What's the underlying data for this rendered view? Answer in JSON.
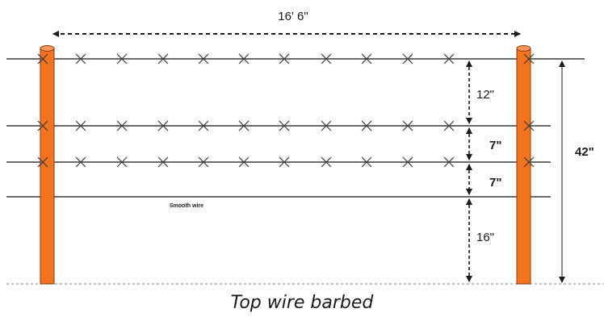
{
  "diagram": {
    "width_label": "16' 6\"",
    "total_height_label": "42\"",
    "spacing_labels": [
      "12\"",
      "7\"",
      "7\"",
      "16\""
    ],
    "smooth_wire_label": "Smooth wire",
    "caption": "Top wire barbed"
  },
  "colors": {
    "post_fill": "#f47321",
    "post_stroke": "#8a3b0a",
    "wire": "#3a3a3a",
    "ground": "#9a9a9a"
  }
}
